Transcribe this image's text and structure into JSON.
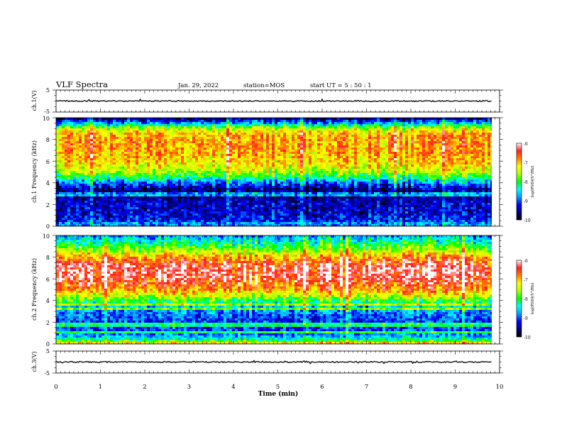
{
  "header": {
    "title": "VLF Spectra",
    "date": "Jan. 29, 2022",
    "station": "station=MOS",
    "start": "start  UT =  5 : 50 : 1"
  },
  "colors": {
    "spectrum": [
      "#000000",
      "#00007f",
      "#0000ff",
      "#00a0ff",
      "#00ffff",
      "#00ff00",
      "#b0ff00",
      "#ffff00",
      "#ff8000",
      "#ff2020",
      "#ffffff"
    ],
    "frame": "#000000"
  },
  "chart_data": [
    {
      "type": "line",
      "name": "ch1-waveform",
      "ylabel": "ch.1(V)",
      "ylim": [
        -5,
        5
      ],
      "y_ticks": [
        "5",
        "-5"
      ],
      "xlim": [
        0,
        10
      ],
      "level": 0
    },
    {
      "type": "heatmap",
      "name": "ch1-spectrogram",
      "ylabel": "ch.1 Frequency (kHz)",
      "ylim": [
        0,
        10
      ],
      "y_ticks": [
        "0",
        "2",
        "4",
        "6",
        "8",
        "10"
      ],
      "xlim": [
        0,
        10
      ],
      "data_end_min": 9.82,
      "colorbar": {
        "label": "log(PSD)(V²/Hz)",
        "range": [
          -10,
          -6
        ],
        "ticks": [
          "-6",
          "-7",
          "-8",
          "-9",
          "-10"
        ]
      },
      "profile": {
        "freq_khz": [
          0,
          0.2,
          0.5,
          1,
          1.5,
          2,
          2.5,
          3,
          3.5,
          4,
          4.5,
          5,
          5.5,
          6,
          6.5,
          7,
          7.5,
          8,
          8.5,
          9,
          9.3,
          9.6,
          10
        ],
        "log_psd": [
          -9,
          -8.6,
          -9.2,
          -9.3,
          -9.4,
          -9.4,
          -9.5,
          -9.7,
          -9.5,
          -8.9,
          -8.2,
          -7.6,
          -7.3,
          -7.1,
          -7.0,
          -6.9,
          -6.9,
          -6.9,
          -7.0,
          -7.5,
          -8.3,
          -9.0,
          -9.8
        ]
      }
    },
    {
      "type": "heatmap",
      "name": "ch2-spectrogram",
      "ylabel": "ch.2 Frequency (kHz)",
      "ylim": [
        0,
        10
      ],
      "y_ticks": [
        "0",
        "2",
        "4",
        "6",
        "8",
        "10"
      ],
      "xlim": [
        0,
        10
      ],
      "data_end_min": 9.82,
      "colorbar": {
        "label": "log(PSD)(V²/Hz)",
        "range": [
          -10,
          -6
        ],
        "ticks": [
          "-6",
          "-7",
          "-8",
          "-9",
          "-10"
        ]
      },
      "profile": {
        "freq_khz": [
          0,
          0.3,
          0.6,
          1,
          1.5,
          2,
          2.5,
          3,
          3.5,
          4,
          4.5,
          5,
          5.5,
          6,
          6.5,
          7,
          7.5,
          8,
          8.5,
          9,
          9.5,
          10
        ],
        "log_psd": [
          -8.2,
          -8.0,
          -8.6,
          -9.0,
          -9.1,
          -9.1,
          -9.0,
          -8.8,
          -8.5,
          -8.0,
          -7.4,
          -6.9,
          -6.6,
          -6.4,
          -6.3,
          -6.3,
          -6.5,
          -6.9,
          -7.5,
          -8.0,
          -8.4,
          -8.8
        ]
      }
    },
    {
      "type": "line",
      "name": "ch3-waveform",
      "ylabel": "ch.3(V)",
      "ylim": [
        -5,
        5
      ],
      "y_ticks": [
        "5",
        "-5"
      ],
      "xlim": [
        0,
        10
      ],
      "level": 0
    }
  ],
  "xaxis": {
    "label": "Time (min)",
    "ticks": [
      "0",
      "1",
      "2",
      "3",
      "4",
      "5",
      "6",
      "7",
      "8",
      "9",
      "10"
    ]
  }
}
